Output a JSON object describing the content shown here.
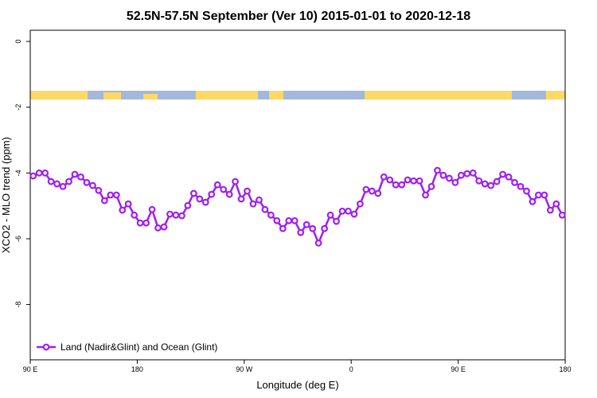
{
  "chart_data": {
    "type": "line",
    "title": "52.5N-57.5N September (Ver 10)   2015-01-01 to 2020-12-18",
    "x_label": "Longitude (deg E)",
    "y_label": "XCO2 - MLO trend (ppm)",
    "xlim": [
      90,
      540
    ],
    "ylim": [
      -9.68,
      0.34
    ],
    "xticks": [
      {
        "value": 90,
        "label": "90 E"
      },
      180,
      {
        "value": 270,
        "label": "90 W"
      },
      {
        "value": 360,
        "label": "0"
      },
      {
        "value": 450,
        "label": "90 E"
      },
      {
        "value": 540,
        "label": "180"
      }
    ],
    "yticks": [
      0,
      -2,
      -4,
      -6,
      -8
    ],
    "legend_position": "bottom-left",
    "x": [
      92.5,
      97.5,
      102.5,
      107.5,
      112.5,
      117.5,
      122.5,
      127.5,
      132.5,
      137.5,
      142.5,
      147.5,
      152.5,
      157.5,
      162.5,
      167.5,
      172.5,
      177.5,
      182.5,
      187.5,
      192.5,
      197.5,
      202.5,
      207.5,
      212.5,
      217.5,
      222.5,
      227.5,
      232.5,
      237.5,
      242.5,
      247.5,
      252.5,
      257.5,
      262.5,
      267.5,
      272.5,
      277.5,
      282.5,
      287.5,
      292.5,
      297.5,
      302.5,
      307.5,
      312.5,
      317.5,
      322.5,
      327.5,
      332.5,
      337.5,
      342.5,
      347.5,
      352.5,
      357.5,
      362.5,
      367.5,
      372.5,
      377.5,
      382.5,
      387.5,
      392.5,
      397.5,
      402.5,
      407.5,
      412.5,
      417.5,
      422.5,
      427.5,
      432.5,
      437.5,
      442.5,
      447.5,
      452.5,
      457.5,
      462.5,
      467.5,
      472.5,
      477.5,
      482.5,
      487.5,
      492.5,
      497.5,
      502.5,
      507.5,
      512.5,
      517.5,
      522.5,
      527.5,
      532.5,
      537.5
    ],
    "series": [
      {
        "name": "Land (Nadir&Glint) and Ocean (Glint)",
        "color": "#a020f0",
        "values": [
          -4.09,
          -4.0,
          -4.0,
          -4.26,
          -4.33,
          -4.41,
          -4.26,
          -4.04,
          -4.12,
          -4.29,
          -4.38,
          -4.53,
          -4.84,
          -4.67,
          -4.67,
          -5.13,
          -4.94,
          -5.28,
          -5.52,
          -5.52,
          -5.11,
          -5.67,
          -5.64,
          -5.25,
          -5.28,
          -5.3,
          -4.99,
          -4.62,
          -4.79,
          -4.89,
          -4.65,
          -4.36,
          -4.5,
          -4.65,
          -4.26,
          -4.79,
          -4.55,
          -4.94,
          -4.82,
          -5.11,
          -5.28,
          -5.45,
          -5.69,
          -5.45,
          -5.45,
          -5.81,
          -5.57,
          -5.69,
          -6.13,
          -5.69,
          -5.28,
          -5.47,
          -5.16,
          -5.16,
          -5.25,
          -4.94,
          -4.5,
          -4.55,
          -4.62,
          -4.12,
          -4.21,
          -4.36,
          -4.36,
          -4.21,
          -4.24,
          -4.24,
          -4.67,
          -4.41,
          -3.92,
          -4.07,
          -4.16,
          -4.29,
          -4.07,
          -4.02,
          -4.0,
          -4.24,
          -4.33,
          -4.38,
          -4.26,
          -4.04,
          -4.12,
          -4.29,
          -4.41,
          -4.55,
          -4.87,
          -4.67,
          -4.67,
          -5.13,
          -4.94,
          -5.28
        ]
      }
    ]
  }
}
